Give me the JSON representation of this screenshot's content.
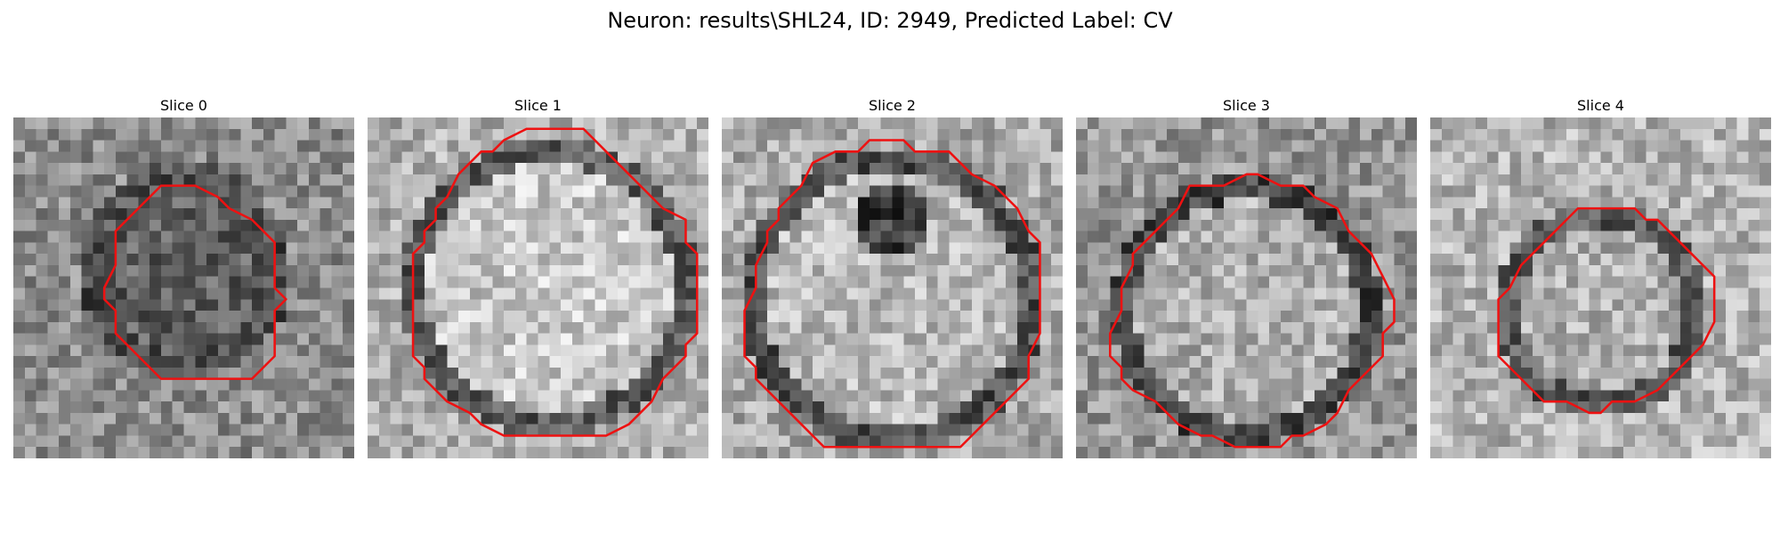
{
  "figure": {
    "title": "Neuron: results\\SHL24, ID: 2949, Predicted Label: CV"
  },
  "panels": [
    {
      "title": "Slice 0",
      "contour_label": "red contour"
    },
    {
      "title": "Slice 1",
      "contour_label": "red contour"
    },
    {
      "title": "Slice 2",
      "contour_label": "red contour"
    },
    {
      "title": "Slice 3",
      "contour_label": "red contour"
    },
    {
      "title": "Slice 4",
      "contour_label": "red contour"
    }
  ],
  "colors": {
    "contour": "#ee1111",
    "background": "#ffffff"
  },
  "image_style": {
    "grid": 30,
    "colormap": "grayscale"
  }
}
